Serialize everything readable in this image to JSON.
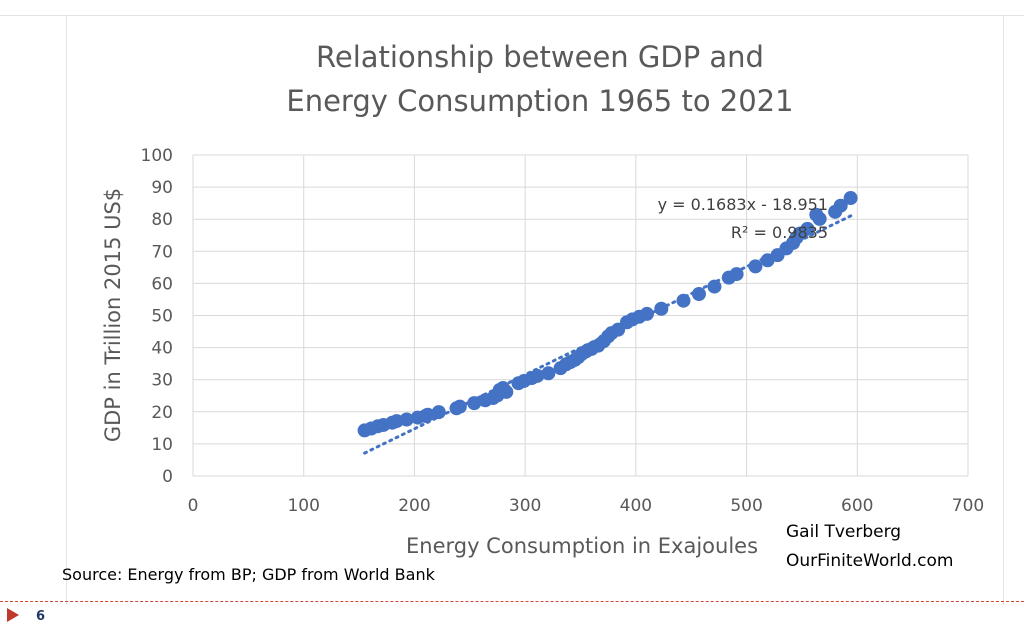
{
  "slide": {
    "source_note": "Source: Energy from BP; GDP from World Bank",
    "credit_name": "Gail Tverberg",
    "credit_site": "OurFiniteWorld.com",
    "page_number": "6",
    "accent_color": "#c0392b"
  },
  "chart_data": {
    "type": "scatter",
    "title_lines": [
      "Relationship between GDP and",
      "Energy Consumption 1965 to 2021"
    ],
    "xlabel": "Energy Consumption in Exajoules",
    "ylabel": "GDP in Trillion 2015 US$",
    "xlim": [
      0,
      700
    ],
    "ylim": [
      0,
      100
    ],
    "xticks": [
      0,
      100,
      200,
      300,
      400,
      500,
      600,
      700
    ],
    "yticks": [
      0,
      10,
      20,
      30,
      40,
      50,
      60,
      70,
      80,
      90,
      100
    ],
    "grid": true,
    "legend": "none",
    "marker_color": "#4472c4",
    "trendline": {
      "type": "linear",
      "slope": 0.1683,
      "intercept": -18.951,
      "x_range": [
        155,
        595
      ],
      "style": "dotted"
    },
    "annotations": {
      "equation": "y = 0.1683x - 18.951",
      "r_squared": "R² = 0.9835"
    },
    "points": [
      {
        "x": 155,
        "y": 14.2
      },
      {
        "x": 161,
        "y": 14.8
      },
      {
        "x": 167,
        "y": 15.5
      },
      {
        "x": 172,
        "y": 15.9
      },
      {
        "x": 180,
        "y": 16.6
      },
      {
        "x": 184,
        "y": 17.1
      },
      {
        "x": 193,
        "y": 17.6
      },
      {
        "x": 203,
        "y": 18.2
      },
      {
        "x": 210,
        "y": 18.7
      },
      {
        "x": 212,
        "y": 19.1
      },
      {
        "x": 222,
        "y": 19.9
      },
      {
        "x": 238,
        "y": 21.1
      },
      {
        "x": 241,
        "y": 21.6
      },
      {
        "x": 254,
        "y": 22.7
      },
      {
        "x": 264,
        "y": 23.6
      },
      {
        "x": 271,
        "y": 24.3
      },
      {
        "x": 275,
        "y": 25.1
      },
      {
        "x": 277,
        "y": 26.8
      },
      {
        "x": 280,
        "y": 27.4
      },
      {
        "x": 283,
        "y": 26.2
      },
      {
        "x": 294,
        "y": 28.9
      },
      {
        "x": 299,
        "y": 29.6
      },
      {
        "x": 306,
        "y": 30.5
      },
      {
        "x": 311,
        "y": 31.2
      },
      {
        "x": 321,
        "y": 32.0
      },
      {
        "x": 332,
        "y": 33.6
      },
      {
        "x": 337,
        "y": 34.8
      },
      {
        "x": 341,
        "y": 35.5
      },
      {
        "x": 345,
        "y": 36.2
      },
      {
        "x": 348,
        "y": 37.0
      },
      {
        "x": 351,
        "y": 38.0
      },
      {
        "x": 355,
        "y": 38.8
      },
      {
        "x": 360,
        "y": 39.6
      },
      {
        "x": 366,
        "y": 40.6
      },
      {
        "x": 371,
        "y": 42.0
      },
      {
        "x": 375,
        "y": 43.5
      },
      {
        "x": 378,
        "y": 44.5
      },
      {
        "x": 384,
        "y": 45.6
      },
      {
        "x": 392,
        "y": 47.9
      },
      {
        "x": 397,
        "y": 48.8
      },
      {
        "x": 403,
        "y": 49.6
      },
      {
        "x": 410,
        "y": 50.5
      },
      {
        "x": 423,
        "y": 52.1
      },
      {
        "x": 443,
        "y": 54.6
      },
      {
        "x": 457,
        "y": 56.7
      },
      {
        "x": 471,
        "y": 59.0
      },
      {
        "x": 484,
        "y": 61.8
      },
      {
        "x": 491,
        "y": 62.9
      },
      {
        "x": 508,
        "y": 65.3
      },
      {
        "x": 519,
        "y": 67.2
      },
      {
        "x": 528,
        "y": 68.8
      },
      {
        "x": 536,
        "y": 70.9
      },
      {
        "x": 542,
        "y": 72.6
      },
      {
        "x": 545,
        "y": 74.2
      },
      {
        "x": 548,
        "y": 75.5
      },
      {
        "x": 555,
        "y": 77.0
      },
      {
        "x": 563,
        "y": 81.4
      },
      {
        "x": 566,
        "y": 80.1
      },
      {
        "x": 580,
        "y": 82.3
      },
      {
        "x": 585,
        "y": 84.2
      },
      {
        "x": 594,
        "y": 86.6
      }
    ]
  }
}
